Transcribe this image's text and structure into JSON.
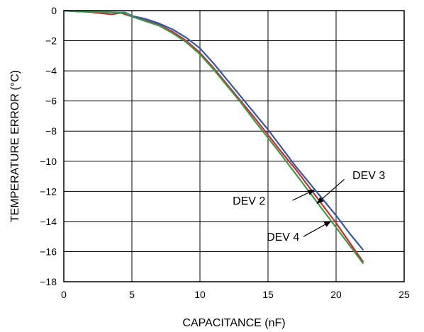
{
  "chart_data": {
    "type": "line",
    "title": "",
    "xlabel": "CAPACITANCE (nF)",
    "ylabel": "TEMPERATURE ERROR (°C)",
    "xlim": [
      0,
      25
    ],
    "ylim": [
      -18,
      0
    ],
    "grid": true,
    "x_ticks": [
      {
        "value": 0,
        "label": "0"
      },
      {
        "value": 5,
        "label": "5"
      },
      {
        "value": 10,
        "label": "10"
      },
      {
        "value": 15,
        "label": "15"
      },
      {
        "value": 20,
        "label": "20"
      },
      {
        "value": 25,
        "label": "25"
      }
    ],
    "y_ticks": [
      {
        "value": 0,
        "label": "0"
      },
      {
        "value": -2,
        "label": "−2"
      },
      {
        "value": -4,
        "label": "−4"
      },
      {
        "value": -6,
        "label": "−6"
      },
      {
        "value": -8,
        "label": "−8"
      },
      {
        "value": -10,
        "label": "−10"
      },
      {
        "value": -12,
        "label": "−12"
      },
      {
        "value": -14,
        "label": "−14"
      },
      {
        "value": -16,
        "label": "−16"
      },
      {
        "value": -18,
        "label": "−18"
      }
    ],
    "series": [
      {
        "name": "DEV 2",
        "color": "#cc2b2b",
        "x": [
          0,
          1,
          2,
          3,
          3.5,
          4.2,
          5,
          6,
          7,
          8,
          9,
          10,
          11,
          12,
          13,
          14,
          15,
          16,
          17,
          18,
          19,
          20,
          21,
          22
        ],
        "y": [
          0,
          -0.05,
          -0.1,
          -0.2,
          -0.25,
          -0.15,
          -0.4,
          -0.65,
          -0.95,
          -1.4,
          -2.0,
          -2.8,
          -3.8,
          -4.9,
          -6.0,
          -7.1,
          -8.25,
          -9.4,
          -10.5,
          -11.7,
          -12.9,
          -14.1,
          -15.4,
          -16.7
        ]
      },
      {
        "name": "DEV 3",
        "color": "#3355aa",
        "x": [
          0,
          1,
          2,
          3,
          4,
          4.5,
          5,
          6,
          7,
          8,
          9,
          10,
          11,
          12,
          13,
          14,
          15,
          16,
          17,
          18,
          19,
          20,
          21,
          22
        ],
        "y": [
          0,
          -0.05,
          -0.08,
          -0.1,
          -0.12,
          -0.12,
          -0.35,
          -0.55,
          -0.85,
          -1.25,
          -1.8,
          -2.5,
          -3.5,
          -4.6,
          -5.7,
          -6.8,
          -7.9,
          -9.1,
          -10.3,
          -11.4,
          -12.5,
          -13.6,
          -14.8,
          -15.9
        ]
      },
      {
        "name": "DEV 4",
        "color": "#3a9a4a",
        "x": [
          0,
          1,
          2,
          3,
          4,
          4.5,
          5,
          6,
          7,
          8,
          9,
          10,
          11,
          12,
          13,
          14,
          15,
          16,
          17,
          18,
          19,
          20,
          21,
          22
        ],
        "y": [
          0,
          -0.05,
          -0.08,
          -0.1,
          -0.12,
          -0.15,
          -0.4,
          -0.7,
          -1.0,
          -1.5,
          -2.1,
          -2.9,
          -3.9,
          -5.0,
          -6.1,
          -7.3,
          -8.45,
          -9.6,
          -10.8,
          -12.0,
          -13.2,
          -14.4,
          -15.6,
          -16.8
        ]
      }
    ],
    "annotations": [
      {
        "text": "DEV 2",
        "series": "DEV 2",
        "label_x": 12.4,
        "label_y": -12.6,
        "arrow_from_x": 16.8,
        "arrow_from_y": -12.6,
        "arrow_to_x": 18.4,
        "arrow_to_y": -11.9
      },
      {
        "text": "DEV 3",
        "series": "DEV 3",
        "label_x": 21.2,
        "label_y": -10.9,
        "arrow_from_x": 20.6,
        "arrow_from_y": -11.2,
        "arrow_to_x": 18.6,
        "arrow_to_y": -12.8
      },
      {
        "text": "DEV 4",
        "series": "DEV 4",
        "label_x": 14.9,
        "label_y": -15.0,
        "arrow_from_x": 17.6,
        "arrow_from_y": -15.0,
        "arrow_to_x": 19.6,
        "arrow_to_y": -14.0
      }
    ]
  }
}
